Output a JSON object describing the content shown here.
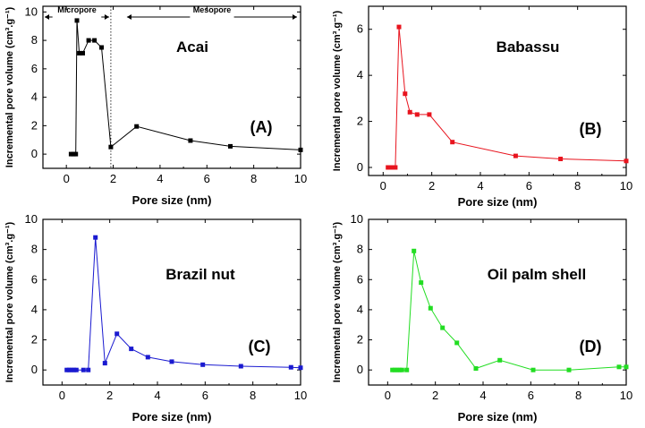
{
  "chart_data": [
    {
      "type": "line",
      "title": "Acai",
      "panel_label": "(A)",
      "xlabel": "Pore size (nm)",
      "ylabel": "Incremental pore volume (cm³.g⁻¹)",
      "xlim": [
        -1,
        10
      ],
      "ylim": [
        -1,
        10.4
      ],
      "xticks": [
        0,
        2,
        4,
        6,
        8,
        10
      ],
      "yticks": [
        0,
        2,
        4,
        6,
        8,
        10
      ],
      "grid": false,
      "color": "#000000",
      "regions": [
        {
          "label": "Micropore",
          "from": -1,
          "to": 1.9
        },
        {
          "label": "Mesopore",
          "from": 1.9,
          "to": 10
        }
      ],
      "divider_x": 1.9,
      "series": [
        {
          "x": [
            0.2,
            0.3,
            0.4,
            0.45,
            0.55,
            0.7,
            0.95,
            1.2,
            1.5,
            1.9,
            3.0,
            5.3,
            7.0,
            10.0
          ],
          "y": [
            0.0,
            0.0,
            0.0,
            9.4,
            7.1,
            7.1,
            8.0,
            8.0,
            7.5,
            0.5,
            1.95,
            0.95,
            0.55,
            0.3
          ]
        }
      ]
    },
    {
      "type": "line",
      "title": "Babassu",
      "panel_label": "(B)",
      "xlabel": "Pore size (nm)",
      "ylabel": "Incremental pore volume (cm³.g⁻¹)",
      "xlim": [
        -0.6,
        10
      ],
      "ylim": [
        -0.35,
        7
      ],
      "xticks": [
        0,
        2,
        4,
        6,
        8,
        10
      ],
      "yticks": [
        0,
        2,
        4,
        6
      ],
      "grid": false,
      "color": "#e8141e",
      "series": [
        {
          "x": [
            0.2,
            0.3,
            0.4,
            0.5,
            0.65,
            0.9,
            1.1,
            1.4,
            1.9,
            2.85,
            5.45,
            7.3,
            10.0
          ],
          "y": [
            0.0,
            0.0,
            0.0,
            0.0,
            6.1,
            3.2,
            2.4,
            2.3,
            2.3,
            1.1,
            0.5,
            0.37,
            0.28
          ]
        }
      ]
    },
    {
      "type": "line",
      "title": "Brazil nut",
      "panel_label": "(C)",
      "xlabel": "Pore size (nm)",
      "ylabel": "Incremental pore volume (cm³.g⁻¹)",
      "xlim": [
        -0.8,
        10
      ],
      "ylim": [
        -1,
        10
      ],
      "xticks": [
        0,
        2,
        4,
        6,
        8,
        10
      ],
      "yticks": [
        0,
        2,
        4,
        6,
        8,
        10
      ],
      "grid": false,
      "color": "#1a1ad0",
      "series": [
        {
          "x": [
            0.2,
            0.3,
            0.4,
            0.5,
            0.6,
            0.9,
            1.1,
            1.4,
            1.8,
            2.3,
            2.9,
            3.6,
            4.6,
            5.9,
            7.5,
            9.6,
            10.0
          ],
          "y": [
            0.0,
            0.0,
            0.0,
            0.0,
            0.0,
            0.0,
            0.0,
            8.8,
            0.45,
            2.4,
            1.4,
            0.85,
            0.55,
            0.35,
            0.25,
            0.18,
            0.15
          ]
        }
      ]
    },
    {
      "type": "line",
      "title": "Oil palm shell",
      "panel_label": "(D)",
      "xlabel": "Pore size (nm)",
      "ylabel": "Incremental pore volume (cm³.g⁻¹)",
      "xlim": [
        -0.8,
        10
      ],
      "ylim": [
        -1,
        10
      ],
      "xticks": [
        0,
        2,
        4,
        6,
        8,
        10
      ],
      "yticks": [
        0,
        2,
        4,
        6,
        8,
        10
      ],
      "grid": false,
      "color": "#22dd22",
      "series": [
        {
          "x": [
            0.2,
            0.3,
            0.4,
            0.5,
            0.6,
            0.8,
            1.1,
            1.4,
            1.8,
            2.3,
            2.9,
            3.7,
            4.7,
            6.1,
            7.6,
            9.7,
            10.0
          ],
          "y": [
            0.0,
            0.0,
            0.0,
            0.0,
            0.0,
            0.0,
            7.9,
            5.8,
            4.1,
            2.8,
            1.8,
            0.1,
            0.65,
            0.0,
            0.0,
            0.2,
            0.2
          ]
        }
      ]
    }
  ]
}
